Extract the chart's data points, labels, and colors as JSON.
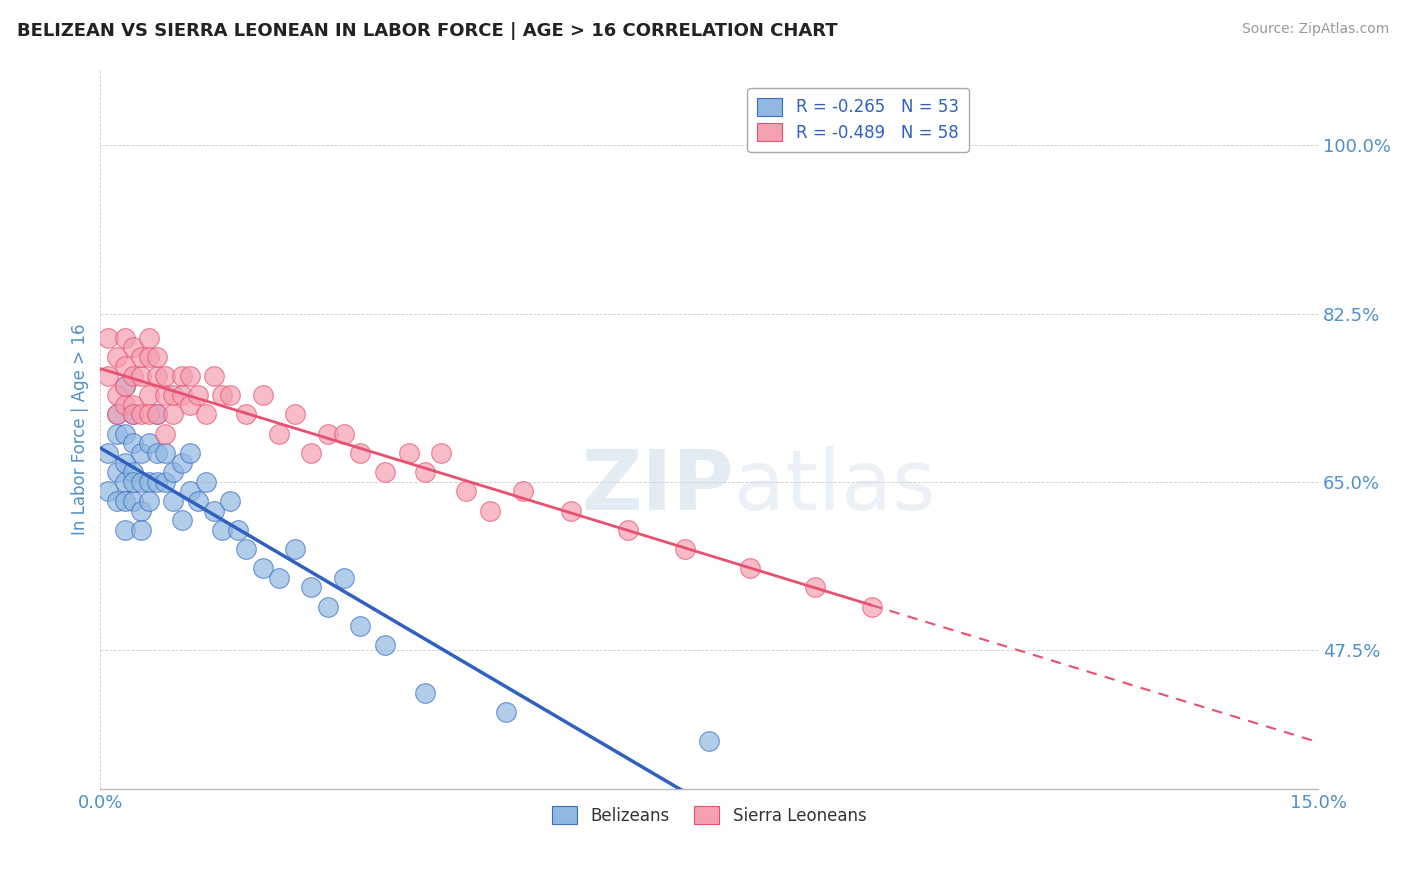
{
  "title": "BELIZEAN VS SIERRA LEONEAN IN LABOR FORCE | AGE > 16 CORRELATION CHART",
  "source": "Source: ZipAtlas.com",
  "xlabel": "",
  "ylabel": "In Labor Force | Age > 16",
  "xlim": [
    0.0,
    0.15
  ],
  "ylim": [
    0.33,
    1.08
  ],
  "yticks": [
    0.475,
    0.65,
    0.825,
    1.0
  ],
  "ytick_labels": [
    "47.5%",
    "65.0%",
    "82.5%",
    "100.0%"
  ],
  "xticks": [
    0.0,
    0.15
  ],
  "xtick_labels": [
    "0.0%",
    "15.0%"
  ],
  "legend_entries": [
    {
      "label": "R = -0.265   N = 53",
      "color": "#aec6e8"
    },
    {
      "label": "R = -0.489   N = 58",
      "color": "#f4b8c1"
    }
  ],
  "legend_bottom": [
    "Belizeans",
    "Sierra Leoneans"
  ],
  "watermark": "ZIPatlas",
  "blue_color": "#3a6fc4",
  "pink_color": "#e8607a",
  "blue_scatter_color": "#90b8e0",
  "pink_scatter_color": "#f4a0b0",
  "blue_line_color": "#3060c0",
  "pink_line_color": "#e85070",
  "belizean_x": [
    0.001,
    0.001,
    0.002,
    0.002,
    0.002,
    0.002,
    0.003,
    0.003,
    0.003,
    0.003,
    0.003,
    0.003,
    0.004,
    0.004,
    0.004,
    0.004,
    0.004,
    0.005,
    0.005,
    0.005,
    0.005,
    0.006,
    0.006,
    0.006,
    0.007,
    0.007,
    0.007,
    0.008,
    0.008,
    0.009,
    0.009,
    0.01,
    0.01,
    0.011,
    0.011,
    0.012,
    0.013,
    0.014,
    0.015,
    0.016,
    0.017,
    0.018,
    0.02,
    0.022,
    0.024,
    0.026,
    0.028,
    0.03,
    0.032,
    0.035,
    0.04,
    0.05,
    0.075
  ],
  "belizean_y": [
    0.68,
    0.64,
    0.7,
    0.66,
    0.63,
    0.72,
    0.65,
    0.67,
    0.7,
    0.63,
    0.75,
    0.6,
    0.66,
    0.69,
    0.63,
    0.65,
    0.72,
    0.65,
    0.68,
    0.62,
    0.6,
    0.65,
    0.63,
    0.69,
    0.65,
    0.68,
    0.72,
    0.65,
    0.68,
    0.63,
    0.66,
    0.61,
    0.67,
    0.64,
    0.68,
    0.63,
    0.65,
    0.62,
    0.6,
    0.63,
    0.6,
    0.58,
    0.56,
    0.55,
    0.58,
    0.54,
    0.52,
    0.55,
    0.5,
    0.48,
    0.43,
    0.41,
    0.38
  ],
  "sierraleonean_x": [
    0.001,
    0.001,
    0.002,
    0.002,
    0.002,
    0.003,
    0.003,
    0.003,
    0.003,
    0.004,
    0.004,
    0.004,
    0.004,
    0.005,
    0.005,
    0.005,
    0.006,
    0.006,
    0.006,
    0.006,
    0.007,
    0.007,
    0.007,
    0.008,
    0.008,
    0.008,
    0.009,
    0.009,
    0.01,
    0.01,
    0.011,
    0.011,
    0.012,
    0.013,
    0.014,
    0.015,
    0.016,
    0.018,
    0.02,
    0.022,
    0.024,
    0.026,
    0.028,
    0.03,
    0.032,
    0.035,
    0.038,
    0.04,
    0.042,
    0.045,
    0.048,
    0.052,
    0.058,
    0.065,
    0.072,
    0.08,
    0.088,
    0.095
  ],
  "sierraleonean_y": [
    0.76,
    0.8,
    0.74,
    0.78,
    0.72,
    0.77,
    0.73,
    0.8,
    0.75,
    0.76,
    0.79,
    0.73,
    0.72,
    0.76,
    0.72,
    0.78,
    0.74,
    0.78,
    0.8,
    0.72,
    0.76,
    0.78,
    0.72,
    0.74,
    0.76,
    0.7,
    0.74,
    0.72,
    0.76,
    0.74,
    0.73,
    0.76,
    0.74,
    0.72,
    0.76,
    0.74,
    0.74,
    0.72,
    0.74,
    0.7,
    0.72,
    0.68,
    0.7,
    0.7,
    0.68,
    0.66,
    0.68,
    0.66,
    0.68,
    0.64,
    0.62,
    0.64,
    0.62,
    0.6,
    0.58,
    0.56,
    0.54,
    0.52
  ],
  "background_color": "#ffffff",
  "grid_color": "#cccccc",
  "title_color": "#222222",
  "axis_label_color": "#5090c8",
  "tick_color": "#5090c8"
}
